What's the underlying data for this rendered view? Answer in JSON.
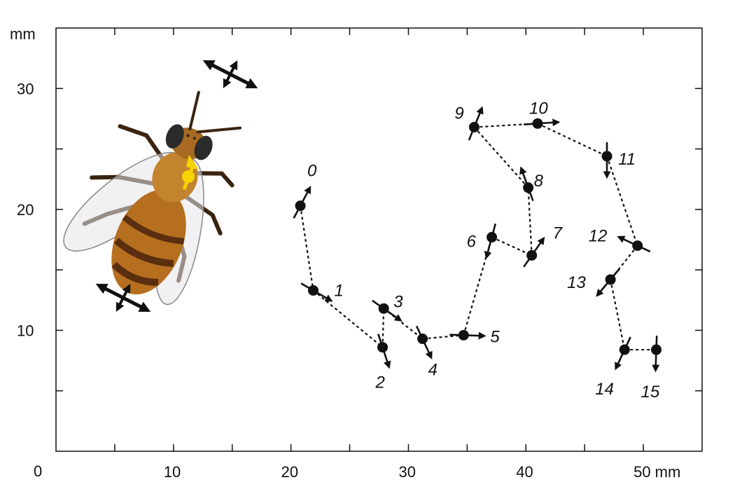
{
  "chart_data": {
    "type": "scatter",
    "units": "mm",
    "xlim": [
      0,
      55
    ],
    "ylim": [
      0,
      35
    ],
    "x_ticks": [
      10,
      20,
      30,
      40,
      50
    ],
    "x_tick_labels": [
      "10",
      "20",
      "30",
      "40",
      "50 mm"
    ],
    "y_ticks": [
      10,
      20,
      30
    ],
    "y_tick_labels": [
      "10",
      "20",
      "30"
    ],
    "origin_label": "0",
    "y_unit_label": "mm",
    "points": [
      {
        "label": "0",
        "x": 20.8,
        "y": 20.3,
        "heading_deg": 62
      },
      {
        "label": "1",
        "x": 21.9,
        "y": 13.3,
        "heading_deg": -30
      },
      {
        "label": "2",
        "x": 27.8,
        "y": 8.6,
        "heading_deg": -72
      },
      {
        "label": "3",
        "x": 27.9,
        "y": 11.8,
        "heading_deg": -35
      },
      {
        "label": "4",
        "x": 31.2,
        "y": 9.3,
        "heading_deg": -65
      },
      {
        "label": "5",
        "x": 34.7,
        "y": 9.6,
        "heading_deg": -2
      },
      {
        "label": "6",
        "x": 37.1,
        "y": 17.7,
        "heading_deg": -105
      },
      {
        "label": "7",
        "x": 40.5,
        "y": 16.2,
        "heading_deg": 55
      },
      {
        "label": "8",
        "x": 40.2,
        "y": 21.8,
        "heading_deg": 110
      },
      {
        "label": "9",
        "x": 35.6,
        "y": 26.8,
        "heading_deg": 68
      },
      {
        "label": "10",
        "x": 41.0,
        "y": 27.1,
        "heading_deg": 4
      },
      {
        "label": "11",
        "x": 46.9,
        "y": 24.4,
        "heading_deg": -90
      },
      {
        "label": "12",
        "x": 49.5,
        "y": 17.0,
        "heading_deg": 155
      },
      {
        "label": "13",
        "x": 47.2,
        "y": 14.2,
        "heading_deg": -130
      },
      {
        "label": "14",
        "x": 48.4,
        "y": 8.4,
        "heading_deg": -115
      },
      {
        "label": "15",
        "x": 51.1,
        "y": 8.4,
        "heading_deg": -92
      }
    ],
    "path_order": [
      "0",
      "1",
      "2",
      "3",
      "4",
      "5",
      "6",
      "7",
      "8",
      "9",
      "10",
      "11",
      "12",
      "13",
      "14",
      "15"
    ],
    "grid": false,
    "legend": "none"
  },
  "colors": {
    "marker": "#111111",
    "bee_body": "#c07a22",
    "bee_abdomen_dark": "#6b3a14",
    "bee_marker": "#f5d400"
  },
  "icons": {
    "bee": "honeybee-illustration",
    "double_arrow": "double-headed-cross-arrow-icon"
  }
}
